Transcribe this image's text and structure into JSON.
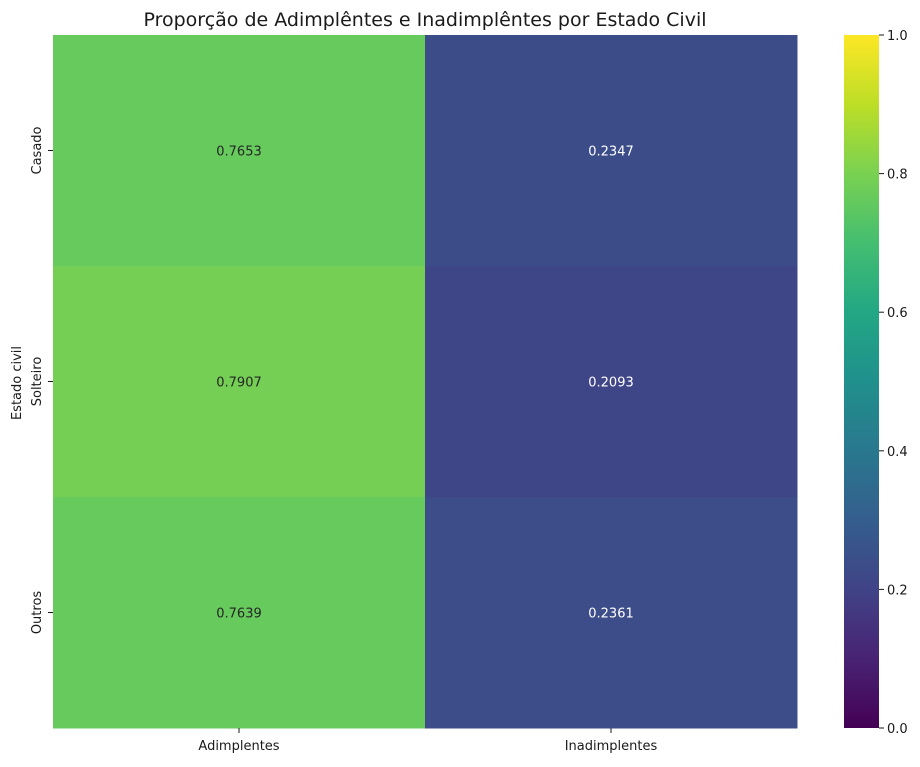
{
  "chart_data": {
    "type": "heatmap",
    "title": "Proporção de Adimplêntes e Inadimplêntes por Estado Civil",
    "xlabel": "",
    "ylabel": "Estado civil",
    "x_categories": [
      "Adimplentes",
      "Inadimplentes"
    ],
    "y_categories": [
      "Casado",
      "Solteiro",
      "Outros"
    ],
    "values": [
      [
        0.7653,
        0.2347
      ],
      [
        0.7907,
        0.2093
      ],
      [
        0.7639,
        0.2361
      ]
    ],
    "value_labels": [
      [
        "0.7653",
        "0.2347"
      ],
      [
        "0.7907",
        "0.2093"
      ],
      [
        "0.7639",
        "0.2361"
      ]
    ],
    "colormap": "viridis",
    "vmin": 0.0,
    "vmax": 1.0,
    "colorbar_ticks": [
      0.0,
      0.2,
      0.4,
      0.6,
      0.8,
      1.0
    ],
    "colorbar_tick_labels": [
      "0.0",
      "0.2",
      "0.4",
      "0.6",
      "0.8",
      "1.0"
    ]
  }
}
